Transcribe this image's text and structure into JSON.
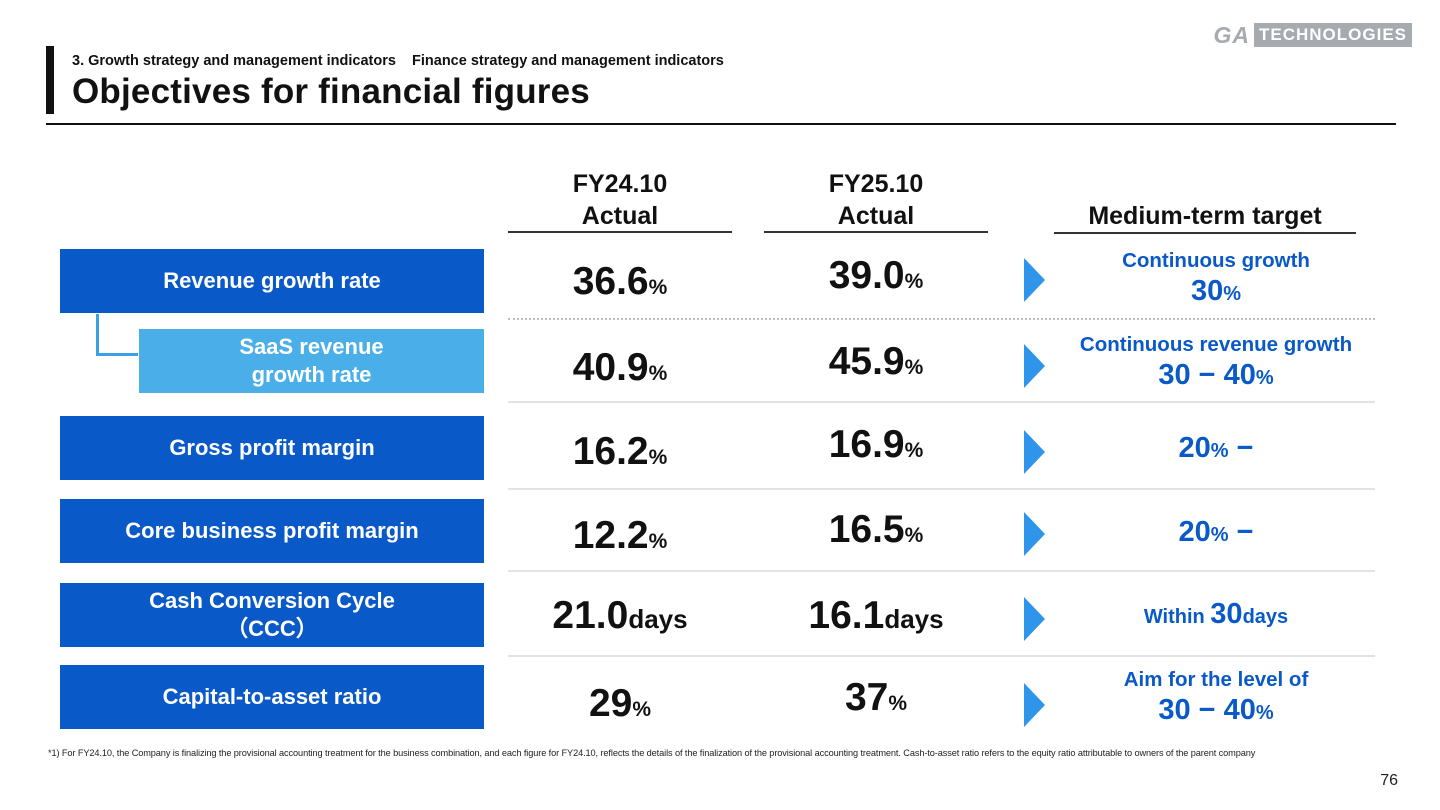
{
  "header": {
    "breadcrumb": "3. Growth strategy and management indicators    Finance strategy and management indicators",
    "title": "Objectives for financial figures",
    "logo_left": "GA",
    "logo_right": "TECHNOLOGIES"
  },
  "columns": {
    "fy24": {
      "line1": "FY24.10",
      "line2": "Actual"
    },
    "fy25": {
      "line1": "FY25.10",
      "line2": "Actual"
    },
    "target": {
      "line1": "Medium-term target"
    }
  },
  "rows": [
    {
      "label": "Revenue growth rate",
      "fy24": "36.6",
      "fy24_unit": "%",
      "fy25": "39.0",
      "fy25_unit": "%",
      "target_line1": "Continuous growth",
      "target_num": "30",
      "target_unit": "%"
    },
    {
      "label": "SaaS revenue growth rate",
      "fy24": "40.9",
      "fy24_unit": "%",
      "fy25": "45.9",
      "fy25_unit": "%",
      "target_line1": "Continuous revenue growth",
      "target_num": "30 − 40",
      "target_unit": "%"
    },
    {
      "label": "Gross profit margin",
      "fy24": "16.2",
      "fy24_unit": "%",
      "fy25": "16.9",
      "fy25_unit": "%",
      "target_num": "20",
      "target_unit": "%",
      "target_suffix": " −"
    },
    {
      "label": "Core business profit margin",
      "fy24": "12.2",
      "fy24_unit": "%",
      "fy25": "16.5",
      "fy25_unit": "%",
      "target_num": "20",
      "target_unit": "%",
      "target_suffix": " −"
    },
    {
      "label_line1": "Cash Conversion Cycle",
      "label_line2": "（CCC）",
      "fy24": "21.0",
      "fy24_unit": "days",
      "fy25": "16.1",
      "fy25_unit": "days",
      "target_prefix": "Within ",
      "target_num": "30",
      "target_unit": "days"
    },
    {
      "label": "Capital-to-asset ratio",
      "fy24": "29",
      "fy24_unit": "%",
      "fy25": "37",
      "fy25_unit": "%",
      "target_line1": "Aim for the level of",
      "target_num": "30 − 40",
      "target_unit": "%"
    }
  ],
  "footnote": "*1) For FY24.10, the Company is finalizing the provisional accounting treatment for the business combination, and each figure for FY24.10, reflects the details of the finalization of the provisional accounting treatment. Cash-to-asset ratio refers to the equity ratio attributable to owners of the parent company",
  "page_number": "76",
  "colors": {
    "primary_blue": "#0a59c8",
    "light_blue": "#4aaee8",
    "arrow_blue": "#2f95ea"
  }
}
